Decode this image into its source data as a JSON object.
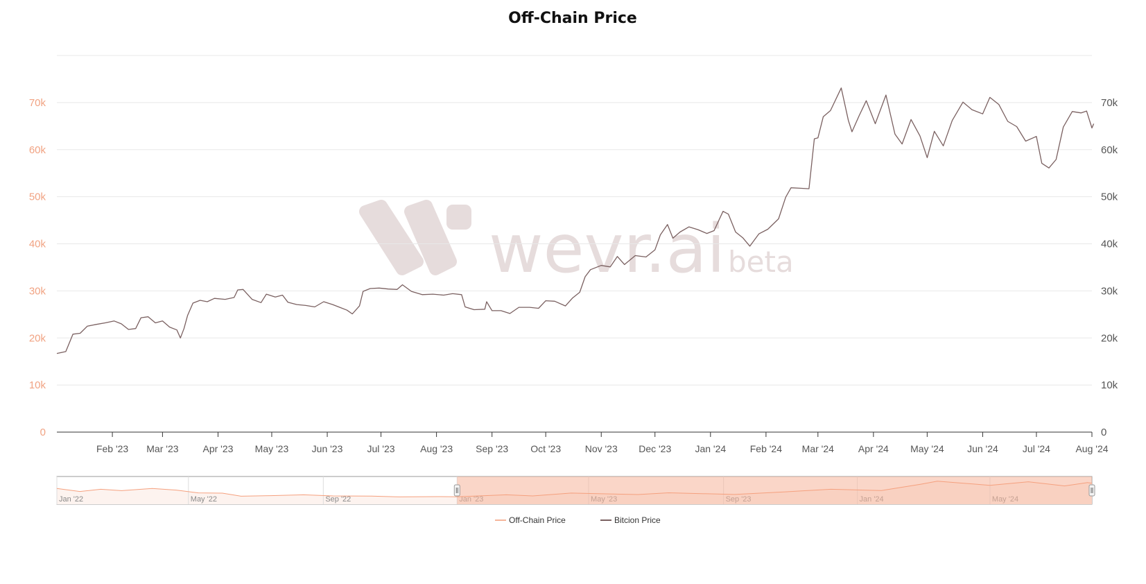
{
  "chart_data": {
    "type": "line",
    "title": "Off-Chain Price",
    "xlabel": "",
    "ylabel": "",
    "x_range": [
      "2023-01-01",
      "2024-08-01"
    ],
    "ylim": [
      0,
      80000
    ],
    "y_ticks": [
      0,
      10000,
      20000,
      30000,
      40000,
      50000,
      60000,
      70000
    ],
    "y_tick_labels": [
      "0",
      "10k",
      "20k",
      "30k",
      "40k",
      "50k",
      "60k",
      "70k"
    ],
    "x_tick_labels": [
      "Feb '23",
      "Mar '23",
      "Apr '23",
      "May '23",
      "Jun '23",
      "Jul '23",
      "Aug '23",
      "Sep '23",
      "Oct '23",
      "Nov '23",
      "Dec '23",
      "Jan '24",
      "Feb '24",
      "Mar '24",
      "Apr '24",
      "May '24",
      "Jun '24",
      "Jul '24",
      "Aug '24"
    ],
    "x_tick_dates": [
      "2023-02-01",
      "2023-03-01",
      "2023-04-01",
      "2023-05-01",
      "2023-06-01",
      "2023-07-01",
      "2023-08-01",
      "2023-09-01",
      "2023-10-01",
      "2023-11-01",
      "2023-12-01",
      "2024-01-01",
      "2024-02-01",
      "2024-03-01",
      "2024-04-01",
      "2024-05-01",
      "2024-06-01",
      "2024-07-01",
      "2024-08-01"
    ],
    "grid": true,
    "legend_position": "bottom-center",
    "colors": {
      "off_chain": "#f5b49a",
      "bitcoin": "#7a6060"
    },
    "series": [
      {
        "name": "Bitcion Price",
        "color": "#7a6060",
        "points": [
          [
            "2023-01-01",
            16700
          ],
          [
            "2023-01-06",
            17100
          ],
          [
            "2023-01-10",
            20800
          ],
          [
            "2023-01-14",
            21000
          ],
          [
            "2023-01-18",
            22500
          ],
          [
            "2023-01-22",
            22800
          ],
          [
            "2023-01-28",
            23200
          ],
          [
            "2023-02-02",
            23600
          ],
          [
            "2023-02-06",
            23000
          ],
          [
            "2023-02-10",
            21800
          ],
          [
            "2023-02-14",
            22000
          ],
          [
            "2023-02-17",
            24300
          ],
          [
            "2023-02-21",
            24500
          ],
          [
            "2023-02-25",
            23200
          ],
          [
            "2023-03-01",
            23600
          ],
          [
            "2023-03-05",
            22300
          ],
          [
            "2023-03-09",
            21700
          ],
          [
            "2023-03-11",
            20000
          ],
          [
            "2023-03-13",
            22000
          ],
          [
            "2023-03-15",
            24800
          ],
          [
            "2023-03-18",
            27400
          ],
          [
            "2023-03-22",
            28000
          ],
          [
            "2023-03-26",
            27700
          ],
          [
            "2023-03-30",
            28400
          ],
          [
            "2023-04-05",
            28200
          ],
          [
            "2023-04-10",
            28600
          ],
          [
            "2023-04-12",
            30200
          ],
          [
            "2023-04-15",
            30300
          ],
          [
            "2023-04-20",
            28200
          ],
          [
            "2023-04-25",
            27500
          ],
          [
            "2023-04-28",
            29300
          ],
          [
            "2023-05-03",
            28700
          ],
          [
            "2023-05-07",
            29100
          ],
          [
            "2023-05-10",
            27600
          ],
          [
            "2023-05-15",
            27100
          ],
          [
            "2023-05-20",
            26900
          ],
          [
            "2023-05-25",
            26600
          ],
          [
            "2023-05-30",
            27700
          ],
          [
            "2023-06-04",
            27100
          ],
          [
            "2023-06-08",
            26500
          ],
          [
            "2023-06-12",
            25900
          ],
          [
            "2023-06-15",
            25100
          ],
          [
            "2023-06-19",
            26800
          ],
          [
            "2023-06-21",
            29900
          ],
          [
            "2023-06-25",
            30500
          ],
          [
            "2023-06-30",
            30600
          ],
          [
            "2023-07-05",
            30400
          ],
          [
            "2023-07-10",
            30300
          ],
          [
            "2023-07-13",
            31300
          ],
          [
            "2023-07-18",
            29900
          ],
          [
            "2023-07-24",
            29200
          ],
          [
            "2023-07-30",
            29300
          ],
          [
            "2023-08-05",
            29100
          ],
          [
            "2023-08-10",
            29400
          ],
          [
            "2023-08-15",
            29200
          ],
          [
            "2023-08-17",
            26600
          ],
          [
            "2023-08-22",
            26000
          ],
          [
            "2023-08-28",
            26100
          ],
          [
            "2023-08-29",
            27700
          ],
          [
            "2023-09-01",
            25800
          ],
          [
            "2023-09-06",
            25800
          ],
          [
            "2023-09-11",
            25200
          ],
          [
            "2023-09-16",
            26500
          ],
          [
            "2023-09-22",
            26500
          ],
          [
            "2023-09-27",
            26300
          ],
          [
            "2023-10-01",
            27900
          ],
          [
            "2023-10-06",
            27800
          ],
          [
            "2023-10-12",
            26800
          ],
          [
            "2023-10-16",
            28500
          ],
          [
            "2023-10-20",
            29700
          ],
          [
            "2023-10-23",
            33000
          ],
          [
            "2023-10-26",
            34500
          ],
          [
            "2023-11-01",
            35400
          ],
          [
            "2023-11-06",
            35100
          ],
          [
            "2023-11-10",
            37300
          ],
          [
            "2023-11-14",
            35600
          ],
          [
            "2023-11-20",
            37500
          ],
          [
            "2023-11-26",
            37200
          ],
          [
            "2023-12-01",
            38700
          ],
          [
            "2023-12-04",
            41900
          ],
          [
            "2023-12-08",
            44100
          ],
          [
            "2023-12-11",
            41200
          ],
          [
            "2023-12-15",
            42500
          ],
          [
            "2023-12-20",
            43600
          ],
          [
            "2023-12-25",
            43000
          ],
          [
            "2023-12-30",
            42200
          ],
          [
            "2024-01-03",
            42800
          ],
          [
            "2024-01-08",
            46900
          ],
          [
            "2024-01-11",
            46300
          ],
          [
            "2024-01-15",
            42500
          ],
          [
            "2024-01-19",
            41300
          ],
          [
            "2024-01-23",
            39500
          ],
          [
            "2024-01-28",
            42100
          ],
          [
            "2024-02-02",
            43100
          ],
          [
            "2024-02-08",
            45300
          ],
          [
            "2024-02-12",
            49900
          ],
          [
            "2024-02-15",
            51900
          ],
          [
            "2024-02-20",
            51800
          ],
          [
            "2024-02-25",
            51700
          ],
          [
            "2024-02-28",
            62300
          ],
          [
            "2024-03-01",
            62500
          ],
          [
            "2024-03-04",
            67000
          ],
          [
            "2024-03-08",
            68300
          ],
          [
            "2024-03-14",
            73100
          ],
          [
            "2024-03-18",
            66200
          ],
          [
            "2024-03-20",
            63800
          ],
          [
            "2024-03-24",
            67200
          ],
          [
            "2024-03-28",
            70400
          ],
          [
            "2024-04-02",
            65500
          ],
          [
            "2024-04-08",
            71600
          ],
          [
            "2024-04-13",
            63300
          ],
          [
            "2024-04-17",
            61200
          ],
          [
            "2024-04-22",
            66400
          ],
          [
            "2024-04-27",
            62900
          ],
          [
            "2024-05-01",
            58300
          ],
          [
            "2024-05-05",
            63900
          ],
          [
            "2024-05-10",
            60800
          ],
          [
            "2024-05-15",
            66200
          ],
          [
            "2024-05-21",
            70100
          ],
          [
            "2024-05-26",
            68500
          ],
          [
            "2024-06-01",
            67600
          ],
          [
            "2024-06-05",
            71100
          ],
          [
            "2024-06-10",
            69600
          ],
          [
            "2024-06-15",
            66000
          ],
          [
            "2024-06-20",
            64900
          ],
          [
            "2024-06-25",
            61800
          ],
          [
            "2024-07-01",
            62800
          ],
          [
            "2024-07-04",
            57100
          ],
          [
            "2024-07-08",
            56100
          ],
          [
            "2024-07-12",
            57900
          ],
          [
            "2024-07-16",
            64800
          ],
          [
            "2024-07-21",
            68100
          ],
          [
            "2024-07-26",
            67800
          ],
          [
            "2024-07-29",
            68200
          ],
          [
            "2024-08-01",
            64600
          ],
          [
            "2024-08-02",
            65500
          ]
        ]
      }
    ],
    "navigator": {
      "x_labels": [
        "Jan '22",
        "May '22",
        "Sep '22",
        "Jan '23",
        "May '23",
        "Sep '23",
        "Jan '24",
        "May '24"
      ],
      "x_range": [
        "2022-01-01",
        "2024-08-02"
      ],
      "selected_range": [
        "2023-01-01",
        "2024-08-02"
      ],
      "series_name": "Off-Chain Price",
      "points": [
        [
          "2022-01-01",
          47000
        ],
        [
          "2022-01-22",
          36000
        ],
        [
          "2022-02-10",
          44000
        ],
        [
          "2022-03-01",
          39000
        ],
        [
          "2022-03-29",
          47000
        ],
        [
          "2022-04-20",
          41000
        ],
        [
          "2022-05-10",
          31000
        ],
        [
          "2022-06-01",
          30000
        ],
        [
          "2022-06-18",
          19000
        ],
        [
          "2022-07-15",
          21000
        ],
        [
          "2022-08-14",
          24000
        ],
        [
          "2022-09-10",
          20000
        ],
        [
          "2022-10-15",
          19200
        ],
        [
          "2022-11-09",
          16500
        ],
        [
          "2022-12-15",
          17500
        ],
        [
          "2023-01-01",
          16700
        ],
        [
          "2023-02-15",
          24000
        ],
        [
          "2023-03-11",
          20000
        ],
        [
          "2023-04-15",
          30300
        ],
        [
          "2023-06-15",
          25100
        ],
        [
          "2023-07-13",
          31300
        ],
        [
          "2023-09-11",
          25200
        ],
        [
          "2023-10-26",
          34500
        ],
        [
          "2023-12-08",
          44100
        ],
        [
          "2024-01-23",
          39500
        ],
        [
          "2024-02-28",
          62300
        ],
        [
          "2024-03-14",
          73100
        ],
        [
          "2024-05-01",
          58300
        ],
        [
          "2024-06-05",
          71100
        ],
        [
          "2024-07-08",
          56100
        ],
        [
          "2024-07-29",
          68200
        ],
        [
          "2024-08-02",
          65500
        ]
      ]
    },
    "legend": [
      {
        "name": "Off-Chain Price",
        "color": "#f5b49a"
      },
      {
        "name": "Bitcion Price",
        "color": "#7a6060"
      }
    ]
  },
  "watermark": {
    "text": "wevr.ai",
    "suffix": "beta"
  }
}
